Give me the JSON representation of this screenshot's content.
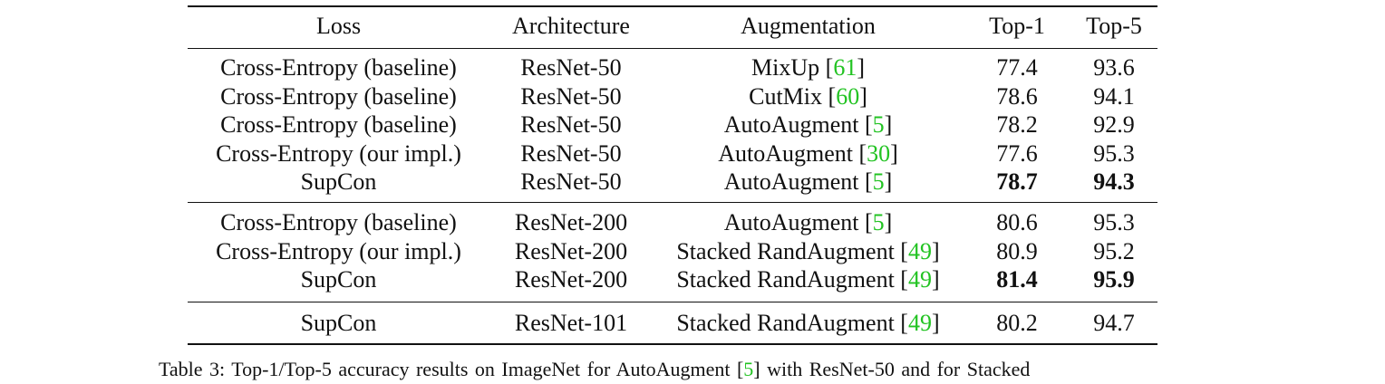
{
  "table": {
    "headers": [
      "Loss",
      "Architecture",
      "Augmentation",
      "Top-1",
      "Top-5"
    ],
    "groups": [
      [
        {
          "loss": "Cross-Entropy (baseline)",
          "arch": "ResNet-50",
          "aug": "MixUp",
          "ref": "61",
          "top1": "77.4",
          "top5": "93.6",
          "bold": false
        },
        {
          "loss": "Cross-Entropy (baseline)",
          "arch": "ResNet-50",
          "aug": "CutMix",
          "ref": "60",
          "top1": "78.6",
          "top5": "94.1",
          "bold": false
        },
        {
          "loss": "Cross-Entropy (baseline)",
          "arch": "ResNet-50",
          "aug": "AutoAugment",
          "ref": "5",
          "top1": "78.2",
          "top5": "92.9",
          "bold": false
        },
        {
          "loss": "Cross-Entropy (our impl.)",
          "arch": "ResNet-50",
          "aug": "AutoAugment",
          "ref": "30",
          "top1": "77.6",
          "top5": "95.3",
          "bold": false
        },
        {
          "loss": "SupCon",
          "arch": "ResNet-50",
          "aug": "AutoAugment",
          "ref": "5",
          "top1": "78.7",
          "top5": "94.3",
          "bold": true
        }
      ],
      [
        {
          "loss": "Cross-Entropy (baseline)",
          "arch": "ResNet-200",
          "aug": "AutoAugment",
          "ref": "5",
          "top1": "80.6",
          "top5": "95.3",
          "bold": false
        },
        {
          "loss": "Cross-Entropy (our impl.)",
          "arch": "ResNet-200",
          "aug": "Stacked RandAugment",
          "ref": "49",
          "top1": "80.9",
          "top5": "95.2",
          "bold": false
        },
        {
          "loss": "SupCon",
          "arch": "ResNet-200",
          "aug": "Stacked RandAugment",
          "ref": "49",
          "top1": "81.4",
          "top5": "95.9",
          "bold": true
        }
      ],
      [
        {
          "loss": "SupCon",
          "arch": "ResNet-101",
          "aug": "Stacked RandAugment",
          "ref": "49",
          "top1": "80.2",
          "top5": "94.7",
          "bold": false
        }
      ]
    ]
  },
  "caption": {
    "before": "Table 3:  Top-1/Top-5 accuracy results on ImageNet for AutoAugment [",
    "ref": "5",
    "after": "] with ResNet-50 and for Stacked"
  },
  "colors": {
    "citation": "#22c322",
    "text": "#111111"
  }
}
